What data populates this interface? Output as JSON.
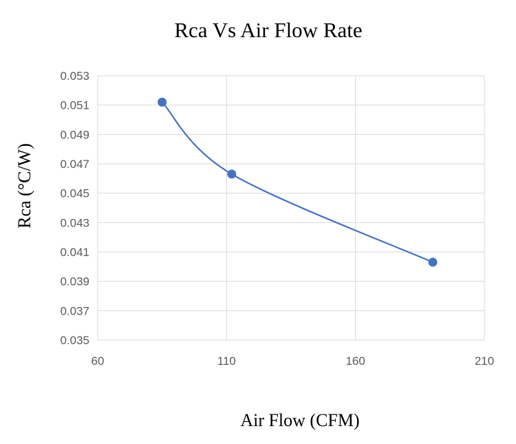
{
  "chart_data": {
    "type": "scatter",
    "title": "Rca Vs Air Flow Rate",
    "xlabel": "Air Flow (CFM)",
    "ylabel": "Rca (°C/W)",
    "xlim": [
      60,
      210
    ],
    "ylim": [
      0.035,
      0.053
    ],
    "xticks": [
      "60",
      "110",
      "160",
      "210"
    ],
    "yticks": [
      "0.035",
      "0.037",
      "0.039",
      "0.041",
      "0.043",
      "0.045",
      "0.047",
      "0.049",
      "0.051",
      "0.053"
    ],
    "grid": true,
    "series": [
      {
        "name": "Rca",
        "color": "#4472c4",
        "line": "smooth",
        "x": [
          85,
          112,
          190
        ],
        "y": [
          0.0512,
          0.0463,
          0.0403
        ]
      }
    ]
  }
}
